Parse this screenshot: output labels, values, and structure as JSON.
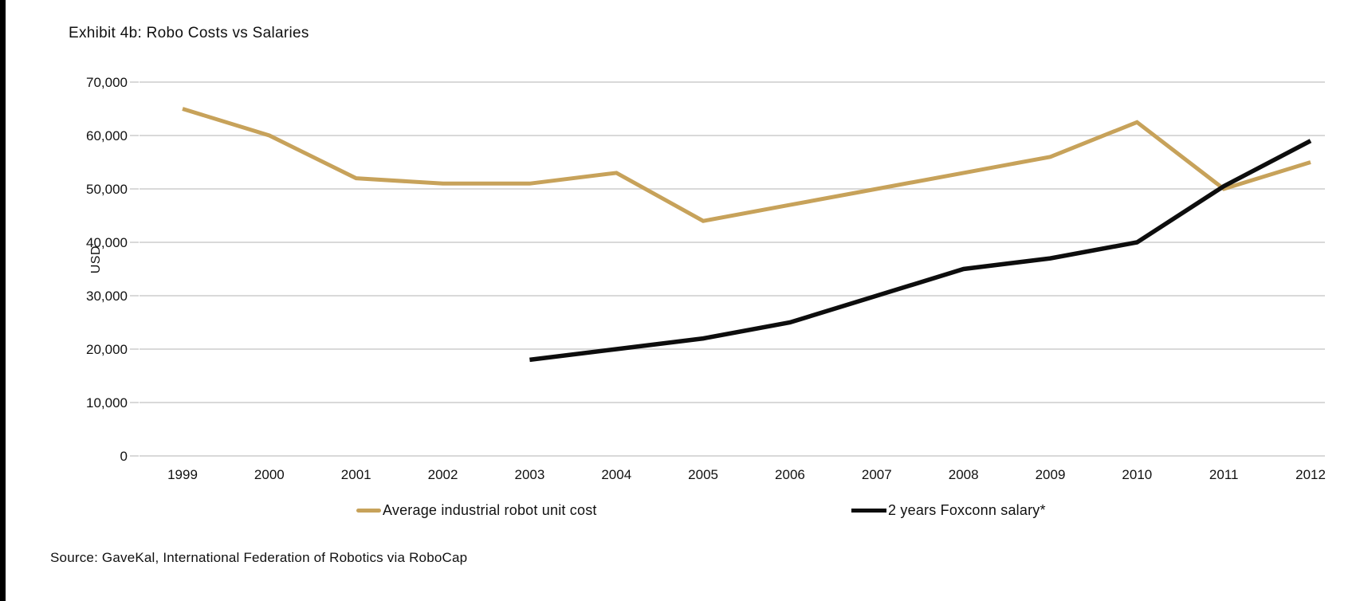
{
  "page": {
    "title": "Exhibit 4b: Robo Costs vs Salaries",
    "source": "Source: GaveKal, International Federation of Robotics via RoboCap"
  },
  "chart_data": {
    "type": "line",
    "title": "Exhibit 4b: Robo Costs vs Salaries",
    "xlabel": "",
    "ylabel": "USD",
    "x": [
      1999,
      2000,
      2001,
      2002,
      2003,
      2004,
      2005,
      2006,
      2007,
      2008,
      2009,
      2010,
      2011,
      2012
    ],
    "x_tick_labels": [
      "1999",
      "2000",
      "2001",
      "2002",
      "2003",
      "2004",
      "2005",
      "2006",
      "2007",
      "2008",
      "2009",
      "2010",
      "2011",
      "2012"
    ],
    "y_tick_labels": [
      "0",
      "10,000",
      "20,000",
      "30,000",
      "40,000",
      "50,000",
      "60,000",
      "70,000"
    ],
    "ylim": [
      0,
      70000
    ],
    "ytick_step": 10000,
    "grid": "horizontal",
    "gridline_color": "#d9d9d9",
    "legend_position": "bottom",
    "series": [
      {
        "name": "Average industrial robot unit cost",
        "color": "#c7a25a",
        "stroke_width": 5,
        "values": [
          65000,
          60000,
          52000,
          51000,
          51000,
          53000,
          44000,
          47000,
          50000,
          53000,
          56000,
          62500,
          50000,
          55000
        ]
      },
      {
        "name": "2 years Foxconn salary*",
        "color": "#0d0d0d",
        "stroke_width": 5.5,
        "values": [
          null,
          null,
          null,
          null,
          18000,
          20000,
          22000,
          25000,
          30000,
          35000,
          37000,
          40000,
          50500,
          59000
        ]
      }
    ]
  }
}
